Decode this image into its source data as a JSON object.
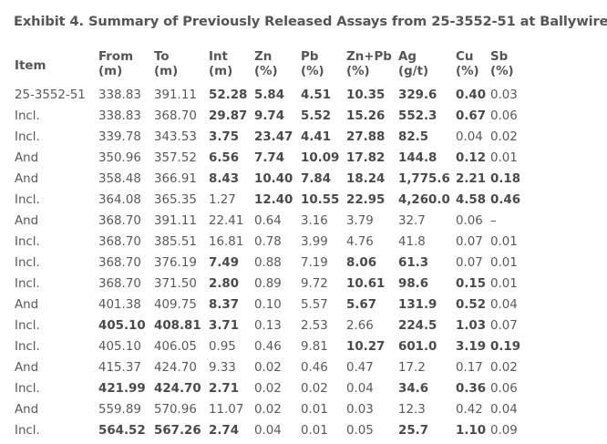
{
  "title": "Exhibit 4. Summary of Previously Released Assays from 25-3552-51 at Ballywire",
  "columns": [
    {
      "l1": "Item",
      "l2": ""
    },
    {
      "l1": "From",
      "l2": "(m)"
    },
    {
      "l1": "To",
      "l2": "(m)"
    },
    {
      "l1": "Int",
      "l2": "(m)"
    },
    {
      "l1": "Zn",
      "l2": "(%)"
    },
    {
      "l1": "Pb",
      "l2": "(%)"
    },
    {
      "l1": "Zn+Pb",
      "l2": "(%)"
    },
    {
      "l1": "Ag",
      "l2": "(g/t)"
    },
    {
      "l1": "Cu",
      "l2": "(%)"
    },
    {
      "l1": "Sb",
      "l2": "(%)"
    }
  ],
  "rows": [
    {
      "cells": [
        "25-3552-51",
        "338.83",
        "391.11",
        "52.28",
        "5.84",
        "4.51",
        "10.35",
        "329.6",
        "0.40",
        "0.03"
      ],
      "bold": [
        false,
        false,
        false,
        true,
        true,
        true,
        true,
        true,
        true,
        false
      ]
    },
    {
      "cells": [
        "Incl.",
        "338.83",
        "368.70",
        "29.87",
        "9.74",
        "5.52",
        "15.26",
        "552.3",
        "0.67",
        "0.06"
      ],
      "bold": [
        false,
        false,
        false,
        true,
        true,
        true,
        true,
        true,
        true,
        false
      ]
    },
    {
      "cells": [
        "Incl.",
        "339.78",
        "343.53",
        "3.75",
        "23.47",
        "4.41",
        "27.88",
        "82.5",
        "0.04",
        "0.02"
      ],
      "bold": [
        false,
        false,
        false,
        true,
        true,
        true,
        true,
        true,
        false,
        false
      ]
    },
    {
      "cells": [
        "And",
        "350.96",
        "357.52",
        "6.56",
        "7.74",
        "10.09",
        "17.82",
        "144.8",
        "0.12",
        "0.01"
      ],
      "bold": [
        false,
        false,
        false,
        true,
        true,
        true,
        true,
        true,
        true,
        false
      ]
    },
    {
      "cells": [
        "And",
        "358.48",
        "366.91",
        "8.43",
        "10.40",
        "7.84",
        "18.24",
        "1,775.6",
        "2.21",
        "0.18"
      ],
      "bold": [
        false,
        false,
        false,
        true,
        true,
        true,
        true,
        true,
        true,
        true
      ]
    },
    {
      "cells": [
        "Incl.",
        "364.08",
        "365.35",
        "1.27",
        "12.40",
        "10.55",
        "22.95",
        "4,260.0",
        "4.58",
        "0.46"
      ],
      "bold": [
        false,
        false,
        false,
        false,
        true,
        true,
        true,
        true,
        true,
        true
      ]
    },
    {
      "cells": [
        "And",
        "368.70",
        "391.11",
        "22.41",
        "0.64",
        "3.16",
        "3.79",
        "32.7",
        "0.06",
        "–"
      ],
      "bold": [
        false,
        false,
        false,
        false,
        false,
        false,
        false,
        false,
        false,
        false
      ]
    },
    {
      "cells": [
        "Incl.",
        "368.70",
        "385.51",
        "16.81",
        "0.78",
        "3.99",
        "4.76",
        "41.8",
        "0.07",
        "0.01"
      ],
      "bold": [
        false,
        false,
        false,
        false,
        false,
        false,
        false,
        false,
        false,
        false
      ]
    },
    {
      "cells": [
        "Incl.",
        "368.70",
        "376.19",
        "7.49",
        "0.88",
        "7.19",
        "8.06",
        "61.3",
        "0.07",
        "0.01"
      ],
      "bold": [
        false,
        false,
        false,
        true,
        false,
        false,
        true,
        true,
        false,
        false
      ]
    },
    {
      "cells": [
        "Incl.",
        "368.70",
        "371.50",
        "2.80",
        "0.89",
        "9.72",
        "10.61",
        "98.6",
        "0.15",
        "0.01"
      ],
      "bold": [
        false,
        false,
        false,
        true,
        false,
        false,
        true,
        true,
        true,
        false
      ]
    },
    {
      "cells": [
        "And",
        "401.38",
        "409.75",
        "8.37",
        "0.10",
        "5.57",
        "5.67",
        "131.9",
        "0.52",
        "0.04"
      ],
      "bold": [
        false,
        false,
        false,
        true,
        false,
        false,
        true,
        true,
        true,
        false
      ]
    },
    {
      "cells": [
        "Incl.",
        "405.10",
        "408.81",
        "3.71",
        "0.13",
        "2.53",
        "2.66",
        "224.5",
        "1.03",
        "0.07"
      ],
      "bold": [
        false,
        true,
        true,
        true,
        false,
        false,
        false,
        true,
        true,
        false
      ]
    },
    {
      "cells": [
        "Incl.",
        "405.10",
        "406.05",
        "0.95",
        "0.46",
        "9.81",
        "10.27",
        "601.0",
        "3.19",
        "0.19"
      ],
      "bold": [
        false,
        false,
        false,
        false,
        false,
        false,
        true,
        true,
        true,
        true
      ]
    },
    {
      "cells": [
        "And",
        "415.37",
        "424.70",
        "9.33",
        "0.02",
        "0.46",
        "0.47",
        "17.2",
        "0.17",
        "0.02"
      ],
      "bold": [
        false,
        false,
        false,
        false,
        false,
        false,
        false,
        false,
        false,
        false
      ]
    },
    {
      "cells": [
        "Incl.",
        "421.99",
        "424.70",
        "2.71",
        "0.02",
        "0.02",
        "0.04",
        "34.6",
        "0.36",
        "0.06"
      ],
      "bold": [
        false,
        true,
        true,
        true,
        false,
        false,
        false,
        true,
        true,
        false
      ]
    },
    {
      "cells": [
        "And",
        "559.89",
        "570.96",
        "11.07",
        "0.02",
        "0.01",
        "0.03",
        "12.3",
        "0.42",
        "0.04"
      ],
      "bold": [
        false,
        false,
        false,
        false,
        false,
        false,
        false,
        false,
        false,
        false
      ]
    },
    {
      "cells": [
        "Incl.",
        "564.52",
        "567.26",
        "2.74",
        "0.04",
        "0.01",
        "0.05",
        "25.7",
        "1.10",
        "0.09"
      ],
      "bold": [
        false,
        true,
        true,
        true,
        false,
        false,
        false,
        true,
        true,
        false
      ]
    }
  ]
}
